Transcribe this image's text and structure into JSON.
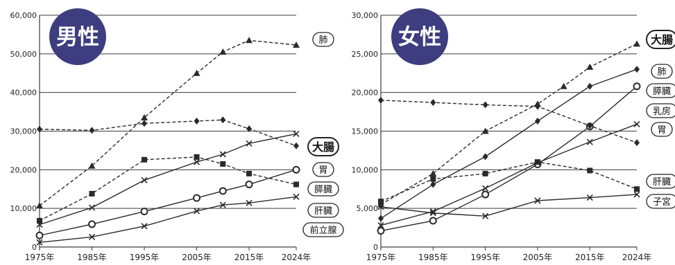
{
  "chart_data": [
    {
      "type": "line",
      "title": "男性",
      "x": [
        "1975年",
        "1985年",
        "1995年",
        "2005年",
        "2015年",
        "2024年"
      ],
      "ylim": [
        0,
        60000
      ],
      "yticks": [
        "0",
        "10,000",
        "20,000",
        "30,000",
        "40,000",
        "50,000",
        "60,000"
      ],
      "grid": true,
      "legend": "right",
      "series": [
        {
          "name": "肺",
          "marker": "triangle",
          "dashed": true,
          "boxed": false,
          "points": [
            [
              1975,
              10700
            ],
            [
              1985,
              21000
            ],
            [
              1995,
              33500
            ],
            [
              2005,
              45000
            ],
            [
              2010,
              50500
            ],
            [
              2015,
              53500
            ],
            [
              2024,
              52300
            ]
          ]
        },
        {
          "name": "大腸",
          "marker": "x",
          "dashed": false,
          "boxed": true,
          "points": [
            [
              1975,
              5800
            ],
            [
              1985,
              10200
            ],
            [
              1995,
              17300
            ],
            [
              2005,
              22000
            ],
            [
              2010,
              24000
            ],
            [
              2015,
              26800
            ],
            [
              2024,
              29300
            ]
          ]
        },
        {
          "name": "胃",
          "marker": "diamond",
          "dashed": true,
          "boxed": false,
          "points": [
            [
              1975,
              30500
            ],
            [
              1985,
              30200
            ],
            [
              1995,
              32000
            ],
            [
              2005,
              32600
            ],
            [
              2010,
              32900
            ],
            [
              2015,
              30600
            ],
            [
              2024,
              26200
            ]
          ]
        },
        {
          "name": "膵臓",
          "marker": "square",
          "dashed": true,
          "boxed": false,
          "points": [
            [
              1975,
              6800
            ],
            [
              1985,
              13800
            ],
            [
              1995,
              22600
            ],
            [
              2005,
              23300
            ],
            [
              2010,
              21500
            ],
            [
              2015,
              19000
            ],
            [
              2024,
              16200
            ]
          ]
        },
        {
          "name": "肝臓",
          "marker": "circle",
          "dashed": false,
          "boxed": false,
          "points": [
            [
              1975,
              3000
            ],
            [
              1985,
              5900
            ],
            [
              1995,
              9200
            ],
            [
              2005,
              12700
            ],
            [
              2010,
              14500
            ],
            [
              2015,
              16200
            ],
            [
              2024,
              20000
            ]
          ]
        },
        {
          "name": "前立腺",
          "marker": "x",
          "dashed": false,
          "boxed": false,
          "points": [
            [
              1975,
              1200
            ],
            [
              1985,
              2600
            ],
            [
              1995,
              5400
            ],
            [
              2005,
              9300
            ],
            [
              2010,
              10900
            ],
            [
              2015,
              11400
            ],
            [
              2024,
              13000
            ]
          ]
        }
      ]
    },
    {
      "type": "line",
      "title": "女性",
      "x": [
        "1975年",
        "1985年",
        "1995年",
        "2005年",
        "2015年",
        "2024年"
      ],
      "ylim": [
        0,
        30000
      ],
      "yticks": [
        "0",
        "5,000",
        "10,000",
        "15,000",
        "20,000",
        "25,000",
        "30,000"
      ],
      "grid": true,
      "legend": "right",
      "series": [
        {
          "name": "大腸",
          "marker": "triangle",
          "dashed": true,
          "boxed": true,
          "points": [
            [
              1975,
              5500
            ],
            [
              1985,
              9500
            ],
            [
              1995,
              15000
            ],
            [
              2005,
              18500
            ],
            [
              2010,
              20800
            ],
            [
              2015,
              23300
            ],
            [
              2024,
              26300
            ]
          ]
        },
        {
          "name": "肺",
          "marker": "diamond",
          "dashed": false,
          "boxed": false,
          "points": [
            [
              1975,
              3700
            ],
            [
              1985,
              8100
            ],
            [
              1995,
              11700
            ],
            [
              2005,
              16300
            ],
            [
              2015,
              20800
            ],
            [
              2024,
              23000
            ]
          ]
        },
        {
          "name": "膵臓",
          "marker": "circle",
          "dashed": false,
          "boxed": false,
          "points": [
            [
              1975,
              2100
            ],
            [
              1985,
              3400
            ],
            [
              1995,
              6800
            ],
            [
              2005,
              10700
            ],
            [
              2015,
              15600
            ],
            [
              2024,
              20800
            ]
          ]
        },
        {
          "name": "乳房",
          "marker": "diamond",
          "dashed": true,
          "boxed": false,
          "points": [
            [
              1975,
              19000
            ],
            [
              1985,
              18700
            ],
            [
              1995,
              18400
            ],
            [
              2005,
              18200
            ],
            [
              2015,
              15700
            ],
            [
              2024,
              13500
            ]
          ]
        },
        {
          "name": "胃",
          "marker": "x",
          "dashed": false,
          "boxed": false,
          "points": [
            [
              1975,
              2800
            ],
            [
              1985,
              4600
            ],
            [
              1995,
              7600
            ],
            [
              2005,
              10900
            ],
            [
              2015,
              13600
            ],
            [
              2024,
              15900
            ]
          ]
        },
        {
          "name": "肝臓",
          "marker": "square",
          "dashed": true,
          "boxed": false,
          "points": [
            [
              1975,
              5900
            ],
            [
              1985,
              8800
            ],
            [
              1995,
              9500
            ],
            [
              2005,
              11000
            ],
            [
              2015,
              9900
            ],
            [
              2024,
              7500
            ]
          ]
        },
        {
          "name": "子宮",
          "marker": "x",
          "dashed": false,
          "boxed": false,
          "points": [
            [
              1975,
              5200
            ],
            [
              1985,
              4400
            ],
            [
              1995,
              4000
            ],
            [
              2005,
              6000
            ],
            [
              2015,
              6400
            ],
            [
              2024,
              6800
            ]
          ]
        }
      ]
    }
  ],
  "colors": {
    "badge": "#3d3d80",
    "line": "#2a2a2a",
    "grid": "#3a3a3a"
  }
}
